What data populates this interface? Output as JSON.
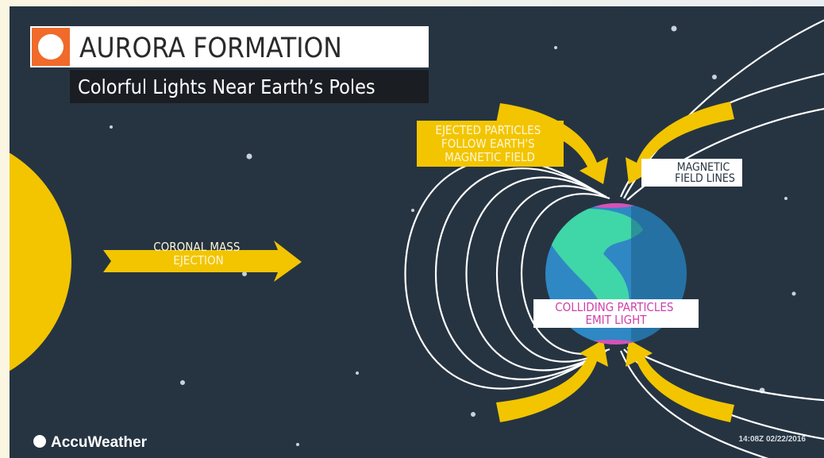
{
  "header": {
    "title": "AURORA FORMATION",
    "subtitle": "Colorful Lights Near Earth’s Poles"
  },
  "labels": {
    "ejected": [
      "EJECTED PARTICLES",
      "FOLLOW EARTH'S",
      "MAGNETIC FIELD"
    ],
    "field_lines": [
      "MAGNETIC",
      "FIELD LINES"
    ],
    "cme": [
      "CORONAL MASS",
      "EJECTION"
    ],
    "colliding": [
      "COLLIDING PARTICLES",
      "EMIT LIGHT"
    ]
  },
  "footer": {
    "brand": "AccuWeather",
    "timestamp": "14:08Z 02/22/2016"
  }
}
